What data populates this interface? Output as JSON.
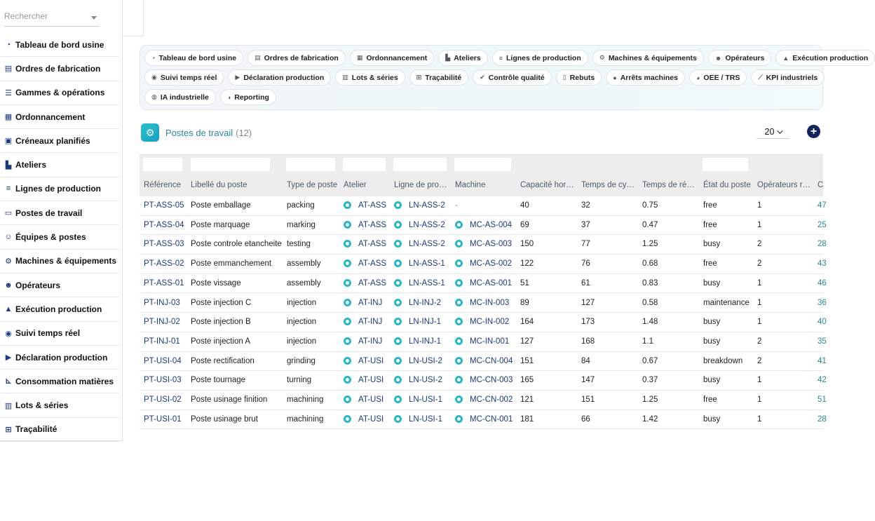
{
  "search": {
    "placeholder": "Rechercher"
  },
  "sidebar": {
    "items": [
      {
        "label": "Tableau de bord usine",
        "icon": "gauge-icon",
        "glyph": "◔"
      },
      {
        "label": "Ordres de fabrication",
        "icon": "clipboard-icon",
        "glyph": "▤"
      },
      {
        "label": "Gammes & opérations",
        "icon": "list-icon",
        "glyph": "☰"
      },
      {
        "label": "Ordonnancement",
        "icon": "calendar-icon",
        "glyph": "▦"
      },
      {
        "label": "Créneaux planifiés",
        "icon": "calendar-check-icon",
        "glyph": "▣"
      },
      {
        "label": "Ateliers",
        "icon": "industry-icon",
        "glyph": "▙"
      },
      {
        "label": "Lignes de production",
        "icon": "lines-icon",
        "glyph": "≡"
      },
      {
        "label": "Postes de travail",
        "icon": "desktop-icon",
        "glyph": "▭"
      },
      {
        "label": "Équipes & postes",
        "icon": "user-group-icon",
        "glyph": "☺"
      },
      {
        "label": "Machines & équipements",
        "icon": "gears-icon",
        "glyph": "⚙"
      },
      {
        "label": "Opérateurs",
        "icon": "users-icon",
        "glyph": "☻"
      },
      {
        "label": "Exécution production",
        "icon": "conveyor-icon",
        "glyph": "▲"
      },
      {
        "label": "Suivi temps réel",
        "icon": "broadcast-icon",
        "glyph": "◉"
      },
      {
        "label": "Déclaration production",
        "icon": "play-circle-icon",
        "glyph": "▶"
      },
      {
        "label": "Consommation matières",
        "icon": "dolly-icon",
        "glyph": "⊾"
      },
      {
        "label": "Lots & séries",
        "icon": "barcode-icon",
        "glyph": "▥"
      },
      {
        "label": "Traçabilité",
        "icon": "sitemap-icon",
        "glyph": "⊞"
      }
    ]
  },
  "modules": {
    "rows": [
      [
        {
          "label": "Tableau de bord usine",
          "icon": "gauge-icon",
          "glyph": "◔"
        },
        {
          "label": "Ordres de fabrication",
          "icon": "clipboard-icon",
          "glyph": "▤"
        },
        {
          "label": "Ordonnancement",
          "icon": "calendar-icon",
          "glyph": "▦"
        },
        {
          "label": "Ateliers",
          "icon": "industry-icon",
          "glyph": "▙"
        },
        {
          "label": "Lignes de production",
          "icon": "lines-icon",
          "glyph": "≡"
        },
        {
          "label": "Machines & équipements",
          "icon": "gears-icon",
          "glyph": "⚙"
        },
        {
          "label": "Opérateurs",
          "icon": "users-icon",
          "glyph": "☻"
        },
        {
          "label": "Exécution production",
          "icon": "conveyor-icon",
          "glyph": "▲"
        }
      ],
      [
        {
          "label": "Suivi temps réel",
          "icon": "broadcast-icon",
          "glyph": "◉"
        },
        {
          "label": "Déclaration production",
          "icon": "play-circle-icon",
          "glyph": "▶"
        },
        {
          "label": "Lots & séries",
          "icon": "barcode-icon",
          "glyph": "▥"
        },
        {
          "label": "Traçabilité",
          "icon": "sitemap-icon",
          "glyph": "⊞"
        },
        {
          "label": "Contrôle qualité",
          "icon": "check-double-icon",
          "glyph": "✔"
        },
        {
          "label": "Rebuts",
          "icon": "trash-icon",
          "glyph": "▯"
        },
        {
          "label": "Arrêts machines",
          "icon": "stop-circle-icon",
          "glyph": "●"
        },
        {
          "label": "OEE / TRS",
          "icon": "gauge-high-icon",
          "glyph": "◕"
        },
        {
          "label": "KPI industriels",
          "icon": "chart-line-icon",
          "glyph": "⟋"
        }
      ],
      [
        {
          "label": "IA industrielle",
          "icon": "brain-icon",
          "glyph": "◍"
        },
        {
          "label": "Reporting",
          "icon": "chart-pie-icon",
          "glyph": "◑"
        }
      ]
    ]
  },
  "page": {
    "title": "Postes de travail",
    "count": "(12)"
  },
  "pager": {
    "value": "20"
  },
  "table": {
    "headers": [
      "Référence",
      "Libellé du poste",
      "Type de poste",
      "Atelier",
      "Ligne de pro…",
      "Machine",
      "Capacité hor…",
      "Temps de cy…",
      "Temps de ré…",
      "État du poste",
      "Opérateurs r…",
      "C"
    ],
    "rows": [
      {
        "ref": "PT-ASS-05",
        "label": "Poste emballage",
        "type": "packing",
        "atelier": "AT-ASS",
        "ligne": "LN-ASS-2",
        "machine": "-",
        "cap": "40",
        "cycle": "32",
        "reglage": "0.75",
        "etat": "free",
        "ops": "1",
        "last": "47"
      },
      {
        "ref": "PT-ASS-04",
        "label": "Poste marquage",
        "type": "marking",
        "atelier": "AT-ASS",
        "ligne": "LN-ASS-2",
        "machine": "MC-AS-004",
        "cap": "69",
        "cycle": "37",
        "reglage": "0.47",
        "etat": "free",
        "ops": "1",
        "last": "25"
      },
      {
        "ref": "PT-ASS-03",
        "label": "Poste controle etancheite",
        "type": "testing",
        "atelier": "AT-ASS",
        "ligne": "LN-ASS-2",
        "machine": "MC-AS-003",
        "cap": "150",
        "cycle": "77",
        "reglage": "1.25",
        "etat": "busy",
        "ops": "2",
        "last": "28"
      },
      {
        "ref": "PT-ASS-02",
        "label": "Poste emmanchement",
        "type": "assembly",
        "atelier": "AT-ASS",
        "ligne": "LN-ASS-1",
        "machine": "MC-AS-002",
        "cap": "122",
        "cycle": "76",
        "reglage": "0.68",
        "etat": "free",
        "ops": "2",
        "last": "43"
      },
      {
        "ref": "PT-ASS-01",
        "label": "Poste vissage",
        "type": "assembly",
        "atelier": "AT-ASS",
        "ligne": "LN-ASS-1",
        "machine": "MC-AS-001",
        "cap": "51",
        "cycle": "61",
        "reglage": "0.83",
        "etat": "busy",
        "ops": "1",
        "last": "46"
      },
      {
        "ref": "PT-INJ-03",
        "label": "Poste injection C",
        "type": "injection",
        "atelier": "AT-INJ",
        "ligne": "LN-INJ-2",
        "machine": "MC-IN-003",
        "cap": "89",
        "cycle": "127",
        "reglage": "0.58",
        "etat": "maintenance",
        "ops": "1",
        "last": "36"
      },
      {
        "ref": "PT-INJ-02",
        "label": "Poste injection B",
        "type": "injection",
        "atelier": "AT-INJ",
        "ligne": "LN-INJ-1",
        "machine": "MC-IN-002",
        "cap": "164",
        "cycle": "173",
        "reglage": "1.48",
        "etat": "busy",
        "ops": "1",
        "last": "40"
      },
      {
        "ref": "PT-INJ-01",
        "label": "Poste injection A",
        "type": "injection",
        "atelier": "AT-INJ",
        "ligne": "LN-INJ-1",
        "machine": "MC-IN-001",
        "cap": "127",
        "cycle": "168",
        "reglage": "1.1",
        "etat": "busy",
        "ops": "2",
        "last": "35"
      },
      {
        "ref": "PT-USI-04",
        "label": "Poste rectification",
        "type": "grinding",
        "atelier": "AT-USI",
        "ligne": "LN-USI-2",
        "machine": "MC-CN-004",
        "cap": "151",
        "cycle": "84",
        "reglage": "0.67",
        "etat": "breakdown",
        "ops": "2",
        "last": "41"
      },
      {
        "ref": "PT-USI-03",
        "label": "Poste tournage",
        "type": "turning",
        "atelier": "AT-USI",
        "ligne": "LN-USI-2",
        "machine": "MC-CN-003",
        "cap": "165",
        "cycle": "147",
        "reglage": "0.37",
        "etat": "busy",
        "ops": "1",
        "last": "42"
      },
      {
        "ref": "PT-USI-02",
        "label": "Poste usinage finition",
        "type": "machining",
        "atelier": "AT-USI",
        "ligne": "LN-USI-1",
        "machine": "MC-CN-002",
        "cap": "121",
        "cycle": "151",
        "reglage": "1.25",
        "etat": "free",
        "ops": "1",
        "last": "51"
      },
      {
        "ref": "PT-USI-01",
        "label": "Poste usinage brut",
        "type": "machining",
        "atelier": "AT-USI",
        "ligne": "LN-USI-1",
        "machine": "MC-CN-001",
        "cap": "181",
        "cycle": "66",
        "reglage": "1.42",
        "etat": "busy",
        "ops": "1",
        "last": "28"
      }
    ]
  }
}
